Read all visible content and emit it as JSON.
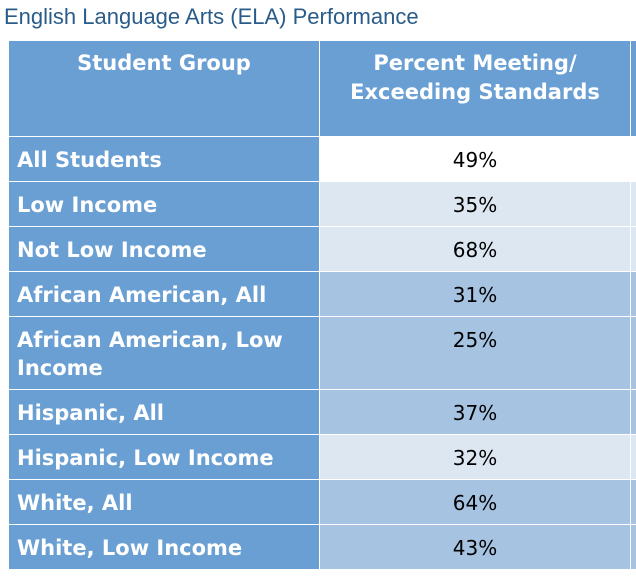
{
  "title": "English Language Arts (ELA) Performance",
  "colors": {
    "header_bg": "#6a9fd3",
    "row_light": "#dce7f2",
    "row_mid": "#a6c3e2",
    "title_color": "#2a5c8a"
  },
  "table": {
    "headers": [
      "Student Group",
      "Percent Meeting/ Exceeding Standards"
    ],
    "header_lines": [
      "Percent Meeting/",
      "Exceeding Standards"
    ]
  },
  "chart_data": {
    "type": "table",
    "title": "English Language Arts (ELA) Performance",
    "columns": [
      "Student Group",
      "Percent Meeting/ Exceeding Standards"
    ],
    "rows": [
      {
        "group": "All Students",
        "value": "49%"
      },
      {
        "group": "Low Income",
        "value": "35%"
      },
      {
        "group": "Not Low Income",
        "value": "68%"
      },
      {
        "group": "African American, All",
        "value": "31%"
      },
      {
        "group": "African American, Low Income",
        "value": "25%"
      },
      {
        "group": "Hispanic, All",
        "value": "37%"
      },
      {
        "group": "Hispanic, Low Income",
        "value": "32%"
      },
      {
        "group": "White, All",
        "value": "64%"
      },
      {
        "group": "White, Low Income",
        "value": "43%"
      }
    ]
  }
}
